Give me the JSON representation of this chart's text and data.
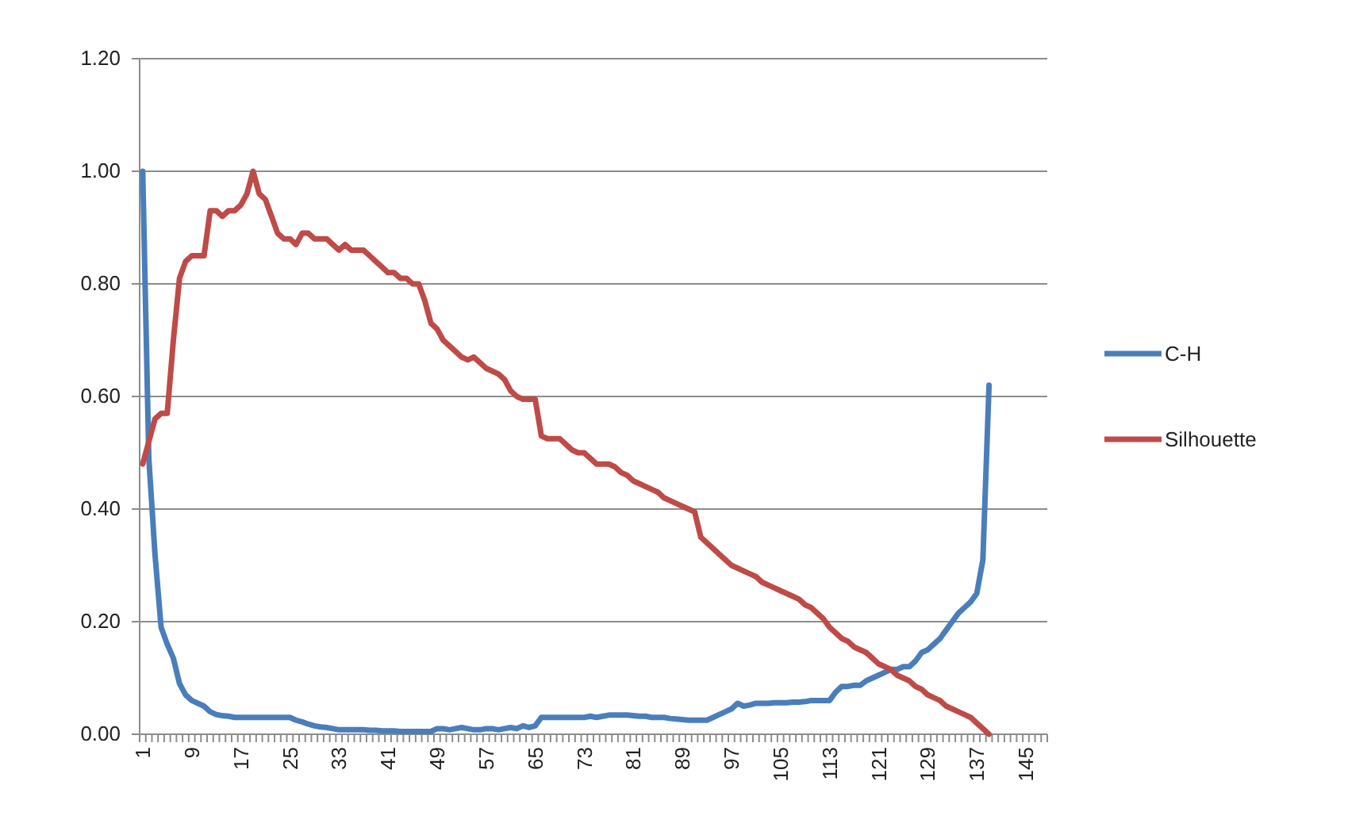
{
  "chart_data": {
    "type": "line",
    "categories": [
      "1",
      null,
      null,
      null,
      null,
      null,
      null,
      null,
      "9",
      null,
      null,
      null,
      null,
      null,
      null,
      null,
      "17",
      null,
      null,
      null,
      null,
      null,
      null,
      null,
      "25",
      null,
      null,
      null,
      null,
      null,
      null,
      null,
      "33",
      null,
      null,
      null,
      null,
      null,
      null,
      null,
      "41",
      null,
      null,
      null,
      null,
      null,
      null,
      null,
      "49",
      null,
      null,
      null,
      null,
      null,
      null,
      null,
      "57",
      null,
      null,
      null,
      null,
      null,
      null,
      null,
      "65",
      null,
      null,
      null,
      null,
      null,
      null,
      null,
      "73",
      null,
      null,
      null,
      null,
      null,
      null,
      null,
      "81",
      null,
      null,
      null,
      null,
      null,
      null,
      null,
      "89",
      null,
      null,
      null,
      null,
      null,
      null,
      null,
      "97",
      null,
      null,
      null,
      null,
      null,
      null,
      null,
      "105",
      null,
      null,
      null,
      null,
      null,
      null,
      null,
      "113",
      null,
      null,
      null,
      null,
      null,
      null,
      null,
      "121",
      null,
      null,
      null,
      null,
      null,
      null,
      null,
      "129",
      null,
      null,
      null,
      null,
      null,
      null,
      null,
      "137",
      null,
      null,
      null,
      null,
      null,
      null,
      null,
      "145",
      null,
      null,
      null
    ],
    "series": [
      {
        "name": "C-H",
        "color": "#4a7ebb",
        "values": [
          1.0,
          0.49,
          0.32,
          0.19,
          0.16,
          0.135,
          0.09,
          0.07,
          0.06,
          0.055,
          0.05,
          0.04,
          0.035,
          0.033,
          0.032,
          0.03,
          0.03,
          0.03,
          0.03,
          0.03,
          0.03,
          0.03,
          0.03,
          0.03,
          0.03,
          0.025,
          0.022,
          0.018,
          0.015,
          0.013,
          0.012,
          0.01,
          0.008,
          0.008,
          0.008,
          0.008,
          0.008,
          0.007,
          0.007,
          0.006,
          0.006,
          0.006,
          0.005,
          0.005,
          0.005,
          0.005,
          0.005,
          0.005,
          0.01,
          0.01,
          0.008,
          0.01,
          0.012,
          0.01,
          0.008,
          0.008,
          0.01,
          0.01,
          0.008,
          0.01,
          0.012,
          0.01,
          0.015,
          0.012,
          0.015,
          0.03,
          0.03,
          0.03,
          0.03,
          0.03,
          0.03,
          0.03,
          0.03,
          0.032,
          0.03,
          0.032,
          0.034,
          0.034,
          0.034,
          0.034,
          0.033,
          0.032,
          0.032,
          0.03,
          0.03,
          0.03,
          0.028,
          0.027,
          0.026,
          0.025,
          0.025,
          0.025,
          0.025,
          0.03,
          0.035,
          0.04,
          0.045,
          0.055,
          0.05,
          0.052,
          0.055,
          0.055,
          0.055,
          0.056,
          0.056,
          0.056,
          0.057,
          0.057,
          0.058,
          0.06,
          0.06,
          0.06,
          0.06,
          0.075,
          0.085,
          0.085,
          0.087,
          0.087,
          0.095,
          0.1,
          0.105,
          0.11,
          0.115,
          0.115,
          0.12,
          0.12,
          0.13,
          0.145,
          0.15,
          0.16,
          0.17,
          0.185,
          0.2,
          0.215,
          0.225,
          0.235,
          0.25,
          0.31,
          0.62,
          null,
          null,
          null,
          null,
          null,
          null,
          null,
          null,
          null
        ]
      },
      {
        "name": "Silhouette",
        "color": "#be4b48",
        "values": [
          0.48,
          0.52,
          0.56,
          0.57,
          0.57,
          0.7,
          0.81,
          0.84,
          0.85,
          0.85,
          0.85,
          0.93,
          0.93,
          0.92,
          0.93,
          0.93,
          0.94,
          0.96,
          1.0,
          0.96,
          0.95,
          0.92,
          0.89,
          0.88,
          0.88,
          0.87,
          0.89,
          0.89,
          0.88,
          0.88,
          0.88,
          0.87,
          0.86,
          0.87,
          0.86,
          0.86,
          0.86,
          0.85,
          0.84,
          0.83,
          0.82,
          0.82,
          0.81,
          0.81,
          0.8,
          0.8,
          0.77,
          0.73,
          0.72,
          0.7,
          0.69,
          0.68,
          0.67,
          0.665,
          0.67,
          0.66,
          0.65,
          0.645,
          0.64,
          0.63,
          0.61,
          0.6,
          0.595,
          0.595,
          0.595,
          0.53,
          0.525,
          0.525,
          0.525,
          0.515,
          0.505,
          0.5,
          0.5,
          0.49,
          0.48,
          0.48,
          0.48,
          0.475,
          0.465,
          0.46,
          0.45,
          0.445,
          0.44,
          0.435,
          0.43,
          0.42,
          0.415,
          0.41,
          0.405,
          0.4,
          0.395,
          0.35,
          0.34,
          0.33,
          0.32,
          0.31,
          0.3,
          0.295,
          0.29,
          0.285,
          0.28,
          0.27,
          0.265,
          0.26,
          0.255,
          0.25,
          0.245,
          0.24,
          0.23,
          0.225,
          0.215,
          0.205,
          0.19,
          0.18,
          0.17,
          0.165,
          0.155,
          0.15,
          0.145,
          0.135,
          0.125,
          0.12,
          0.115,
          0.105,
          0.1,
          0.095,
          0.085,
          0.08,
          0.07,
          0.065,
          0.06,
          0.05,
          0.045,
          0.04,
          0.035,
          0.03,
          0.02,
          0.01,
          0.0,
          null,
          null,
          null,
          null,
          null,
          null,
          null,
          null,
          null
        ]
      }
    ],
    "ylim": [
      0,
      1.2
    ],
    "yticks": [
      {
        "value": 0,
        "label": "0.00"
      },
      {
        "value": 0.2,
        "label": "0.20"
      },
      {
        "value": 0.4,
        "label": "0.40"
      },
      {
        "value": 0.6,
        "label": "0.60"
      },
      {
        "value": 0.8,
        "label": "0.80"
      },
      {
        "value": 1.0,
        "label": "1.00"
      },
      {
        "value": 1.2,
        "label": "1.20"
      }
    ],
    "grid": "y",
    "legend": "right",
    "marker": "none",
    "line_style": "solid"
  }
}
